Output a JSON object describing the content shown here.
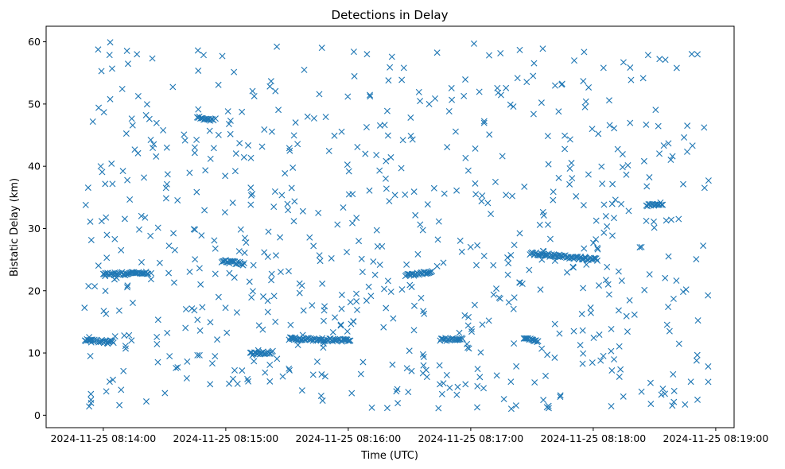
{
  "chart_data": {
    "type": "scatter",
    "title": "Detections in Delay",
    "xlabel": "Time (UTC)",
    "ylabel": "Bistatic Delay (km)",
    "x_ticks": [
      "2024-11-25 08:14:00",
      "2024-11-25 08:15:00",
      "2024-11-25 08:16:00",
      "2024-11-25 08:17:00",
      "2024-11-25 08:18:00",
      "2024-11-25 08:19:00"
    ],
    "y_ticks": [
      0,
      10,
      20,
      30,
      40,
      50,
      60
    ],
    "xlim_seconds_after_0814": [
      -28,
      309
    ],
    "ylim": [
      -2,
      62.5
    ],
    "marker": "x",
    "color": "#1f77b4",
    "grid": false,
    "tracks": [
      {
        "time_start": "08:13:51",
        "time_end": "08:14:05",
        "delay_start": 12.0,
        "delay_end": 11.8
      },
      {
        "time_start": "08:14:46",
        "time_end": "08:14:54",
        "delay_start": 48.0,
        "delay_end": 47.3
      },
      {
        "time_start": "08:14:58",
        "time_end": "08:15:09",
        "delay_start": 24.8,
        "delay_end": 24.3
      },
      {
        "time_start": "08:14:00",
        "time_end": "08:14:22",
        "delay_start": 22.6,
        "delay_end": 22.9
      },
      {
        "time_start": "08:15:12",
        "time_end": "08:15:23",
        "delay_start": 9.8,
        "delay_end": 10.1
      },
      {
        "time_start": "08:15:31",
        "time_end": "08:16:01",
        "delay_start": 12.3,
        "delay_end": 12.0
      },
      {
        "time_start": "08:16:28",
        "time_end": "08:16:41",
        "delay_start": 22.5,
        "delay_end": 22.9
      },
      {
        "time_start": "08:17:29",
        "time_end": "08:17:56",
        "delay_start": 26.0,
        "delay_end": 25.2
      },
      {
        "time_start": "08:17:56",
        "time_end": "08:18:02",
        "delay_start": 25.2,
        "delay_end": 25.0
      },
      {
        "time_start": "08:18:26",
        "time_end": "08:18:34",
        "delay_start": 33.6,
        "delay_end": 34.0
      },
      {
        "time_start": "08:16:45",
        "time_end": "08:16:56",
        "delay_start": 12.1,
        "delay_end": 12.4
      },
      {
        "time_start": "08:17:26",
        "time_end": "08:17:33",
        "delay_start": 12.5,
        "delay_end": 11.8
      }
    ],
    "clutter_points_count": 700,
    "clutter_x_range": [
      "08:13:50",
      "08:18:58"
    ],
    "clutter_y_range": [
      1,
      60
    ]
  }
}
